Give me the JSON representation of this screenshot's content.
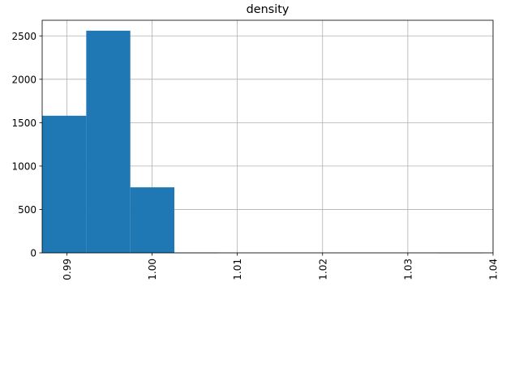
{
  "chart_data": {
    "type": "bar",
    "title": "density",
    "xlabel": "",
    "ylabel": "",
    "xlim": [
      0.98711,
      1.04
    ],
    "ylim": [
      0,
      2680
    ],
    "grid": true,
    "color": "#1f77b4",
    "grid_color": "#b0b0b0",
    "bins": [
      {
        "x0": 0.98711,
        "x1": 0.99228,
        "count": 1580
      },
      {
        "x0": 0.99228,
        "x1": 0.99745,
        "count": 2560
      },
      {
        "x0": 0.99745,
        "x1": 1.00262,
        "count": 755
      },
      {
        "x0": 1.00262,
        "x1": 1.00779,
        "count": 2
      },
      {
        "x0": 1.00779,
        "x1": 1.01296,
        "count": 0
      },
      {
        "x0": 1.01296,
        "x1": 1.01813,
        "count": 0
      },
      {
        "x0": 1.01813,
        "x1": 1.0233,
        "count": 0
      },
      {
        "x0": 1.0233,
        "x1": 1.02847,
        "count": 0
      },
      {
        "x0": 1.02847,
        "x1": 1.03364,
        "count": 0
      },
      {
        "x0": 1.03364,
        "x1": 1.03881,
        "count": 1
      }
    ],
    "x_ticks": [
      0.99,
      1.0,
      1.01,
      1.02,
      1.03,
      1.04
    ],
    "x_tick_labels": [
      "0.99",
      "1.00",
      "1.01",
      "1.02",
      "1.03",
      "1.04"
    ],
    "y_ticks": [
      0,
      500,
      1000,
      1500,
      2000,
      2500
    ],
    "y_tick_labels": [
      "0",
      "500",
      "1000",
      "1500",
      "2000",
      "2500"
    ]
  }
}
